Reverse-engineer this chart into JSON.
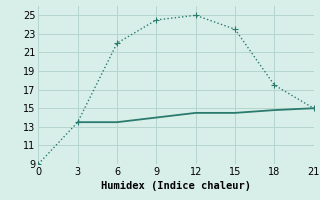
{
  "line1_x": [
    0,
    3,
    6,
    9,
    12,
    15,
    18,
    21
  ],
  "line1_y": [
    9,
    13.5,
    22,
    24.5,
    25,
    23.5,
    17.5,
    15
  ],
  "line2_x": [
    3,
    6,
    9,
    12,
    15,
    18,
    21
  ],
  "line2_y": [
    13.5,
    13.5,
    14.0,
    14.5,
    14.5,
    14.8,
    15.0
  ],
  "line_color": "#2a7a6e",
  "bg_color": "#d8eee9",
  "grid_color": "#b5d5cf",
  "xlabel": "Humidex (Indice chaleur)",
  "xlim": [
    0,
    21
  ],
  "ylim": [
    9,
    26
  ],
  "xticks": [
    0,
    3,
    6,
    9,
    12,
    15,
    18,
    21
  ],
  "yticks": [
    9,
    11,
    13,
    15,
    17,
    19,
    21,
    23,
    25
  ],
  "markersize": 3.0,
  "linewidth": 1.0,
  "font_size": 7.5
}
